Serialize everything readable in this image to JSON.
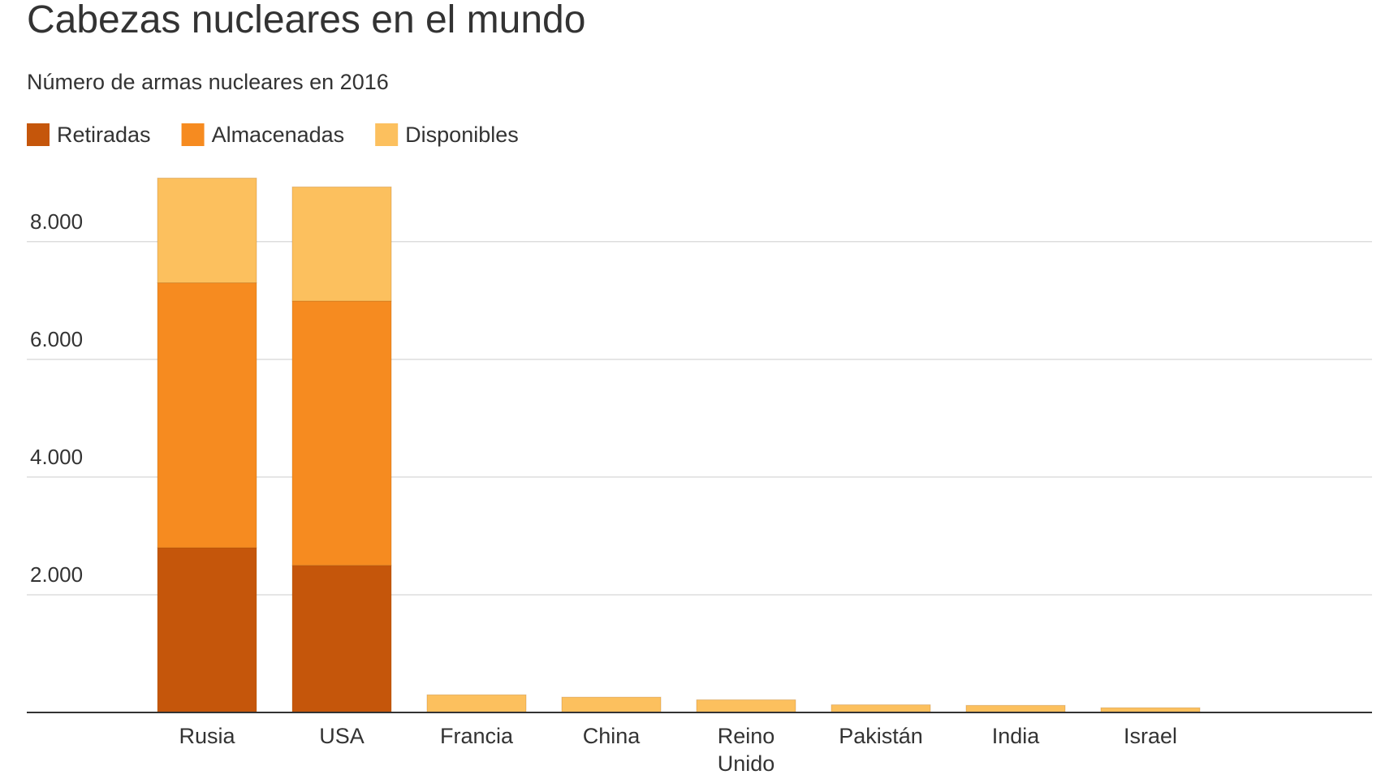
{
  "chart_data": {
    "type": "stacked_bar",
    "title": "Cabezas nucleares en el mundo",
    "subtitle": "Número de armas nucleares en 2016",
    "categories": [
      "Rusia",
      "USA",
      "Francia",
      "China",
      "Reino Unido",
      "Pakistán",
      "India",
      "Israel"
    ],
    "series": [
      {
        "name": "Retiradas",
        "color": "#c5560b",
        "values": [
          2800,
          2500,
          0,
          0,
          0,
          0,
          0,
          0
        ]
      },
      {
        "name": "Almacenadas",
        "color": "#f68b20",
        "values": [
          4500,
          4490,
          0,
          0,
          0,
          0,
          0,
          0
        ]
      },
      {
        "name": "Disponibles",
        "color": "#fcc05e",
        "values": [
          1780,
          1940,
          300,
          260,
          215,
          130,
          120,
          80
        ]
      }
    ],
    "ylim": [
      0,
      9500
    ],
    "yticks": [
      {
        "value": 2000,
        "label": "2.000"
      },
      {
        "value": 4000,
        "label": "4.000"
      },
      {
        "value": 6000,
        "label": "6.000"
      },
      {
        "value": 8000,
        "label": "8.000"
      }
    ],
    "grid": true,
    "legend": "top-left"
  }
}
